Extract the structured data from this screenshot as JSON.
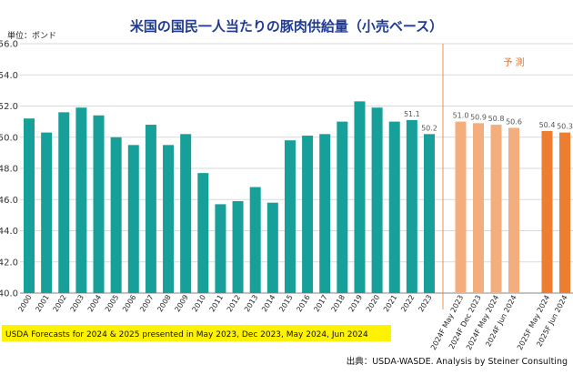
{
  "chart_data": {
    "type": "bar",
    "title": "米国の国民一人当たりの豚肉供給量（小売ベース）",
    "unit_label": "単位：ポンド",
    "forecast_label": "予 測",
    "note": "USDA Forecasts for 2024 & 2025 presented in May 2023, Dec 2023, May 2024, Jun 2024",
    "source": "出典：USDA‐WASDE. Analysis by Steiner Consulting",
    "ylim": [
      40.0,
      56.0
    ],
    "yticks": [
      "40.0",
      "42.0",
      "44.0",
      "46.0",
      "48.0",
      "50.0",
      "52.0",
      "54.0",
      "56.0"
    ],
    "grid": true,
    "colors": {
      "actual": "#17a09a",
      "forecast_2024": "#f4ad7c",
      "forecast_2025": "#ed7d31",
      "divider": "#e8742a",
      "grid": "#d9d9d9"
    },
    "series": [
      {
        "categories": [
          "2000",
          "2001",
          "2002",
          "2003",
          "2004",
          "2005",
          "2006",
          "2007",
          "2008",
          "2009",
          "2010",
          "2011",
          "2012",
          "2013",
          "2014",
          "2015",
          "2016",
          "2017",
          "2018",
          "2019",
          "2020",
          "2021",
          "2022",
          "2023"
        ],
        "values": [
          51.2,
          50.3,
          51.6,
          51.9,
          51.4,
          50.0,
          49.5,
          50.8,
          49.5,
          50.2,
          47.7,
          45.7,
          45.9,
          46.8,
          45.8,
          49.8,
          50.1,
          50.2,
          51.0,
          52.3,
          51.9,
          51.0,
          51.1,
          50.2
        ],
        "data_labels": {
          "2022": "51.1",
          "2023": "50.2"
        }
      },
      {
        "categories": [
          "2024F May 2023",
          "2024F Dec 2023",
          "2024F May 2024",
          "2024F Jun 2024"
        ],
        "values": [
          51.0,
          50.9,
          50.8,
          50.6
        ],
        "data_labels": {
          "2024F May 2023": "51.0",
          "2024F Dec 2023": "50.9",
          "2024F May 2024": "50.8",
          "2024F Jun 2024": "50.6"
        }
      },
      {
        "categories": [
          "2025F May 2024",
          "2025F Jun 2024"
        ],
        "values": [
          50.4,
          50.3
        ],
        "data_labels": {
          "2025F May 2024": "50.4",
          "2025F Jun 2024": "50.3"
        }
      }
    ]
  }
}
